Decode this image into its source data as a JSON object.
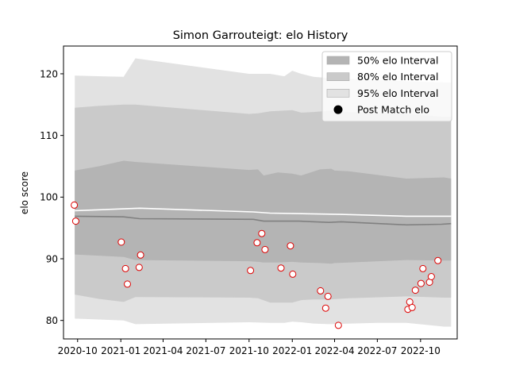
{
  "chart_data": {
    "type": "area",
    "title": "Simon Garrouteigt: elo History",
    "xlabel": "",
    "ylabel": "elo score",
    "xlim": [
      "2020-09-01",
      "2022-12-18"
    ],
    "ylim": [
      77,
      124.5
    ],
    "x_ticks": [
      "2020-10-01",
      "2021-01-01",
      "2021-04-01",
      "2021-07-01",
      "2021-10-01",
      "2022-01-01",
      "2022-04-01",
      "2022-07-01",
      "2022-10-01"
    ],
    "x_tick_labels": [
      "2020-10",
      "2021-01",
      "2021-04",
      "2021-07",
      "2021-10",
      "2022-01",
      "2022-04",
      "2022-07",
      "2022-10"
    ],
    "y_ticks": [
      80,
      90,
      100,
      110,
      120
    ],
    "y_tick_labels": [
      "80",
      "90",
      "100",
      "110",
      "120"
    ],
    "grid": false,
    "legend_position": "top-right",
    "legend": [
      {
        "label": "50% elo Interval",
        "type": "patch",
        "color": "#b4b4b4"
      },
      {
        "label": "80% elo Interval",
        "type": "patch",
        "color": "#cacaca"
      },
      {
        "label": "95% elo Interval",
        "type": "patch",
        "color": "#e2e2e2"
      },
      {
        "label": "Post Match elo",
        "type": "marker",
        "color": "#000000"
      }
    ],
    "bands": [
      {
        "name": "95% elo Interval",
        "color": "#e2e2e2",
        "x": [
          "2020-09-25",
          "2021-01-07",
          "2021-02-01",
          "2021-10-01",
          "2021-11-15",
          "2021-12-15",
          "2022-01-01",
          "2022-01-20",
          "2022-02-15",
          "2022-03-20",
          "2022-07-01",
          "2022-09-01",
          "2022-11-20",
          "2022-12-05"
        ],
        "lower": [
          80.3,
          80.0,
          79.4,
          79.7,
          79.6,
          79.6,
          79.8,
          79.7,
          79.5,
          79.4,
          79.6,
          79.6,
          79.0,
          79.0
        ],
        "upper": [
          119.7,
          119.5,
          122.5,
          120.0,
          120.0,
          119.6,
          120.5,
          120.0,
          119.5,
          119.3,
          119.0,
          118.8,
          118.6,
          118.6
        ]
      },
      {
        "name": "80% elo Interval",
        "color": "#cacaca",
        "x": [
          "2020-09-25",
          "2020-11-15",
          "2021-01-07",
          "2021-02-01",
          "2021-10-01",
          "2021-10-20",
          "2021-11-15",
          "2022-01-01",
          "2022-01-20",
          "2022-02-15",
          "2022-03-20",
          "2022-05-01",
          "2022-09-01",
          "2022-11-20",
          "2022-12-05"
        ],
        "lower": [
          84.2,
          83.5,
          83.0,
          83.8,
          83.7,
          83.6,
          82.9,
          82.9,
          83.3,
          83.4,
          83.4,
          83.6,
          83.9,
          83.7,
          83.7
        ],
        "upper": [
          114.5,
          114.8,
          115.0,
          115.0,
          113.5,
          113.6,
          113.9,
          114.1,
          113.7,
          113.8,
          114.0,
          113.8,
          113.5,
          113.0,
          113.0
        ]
      },
      {
        "name": "50% elo Interval",
        "color": "#b4b4b4",
        "x": [
          "2020-09-25",
          "2020-11-15",
          "2021-01-07",
          "2021-02-01",
          "2021-10-01",
          "2021-10-20",
          "2021-11-01",
          "2021-12-01",
          "2022-01-01",
          "2022-01-20",
          "2022-03-01",
          "2022-03-25",
          "2022-04-01",
          "2022-05-01",
          "2022-09-01",
          "2022-11-20",
          "2022-12-05"
        ],
        "lower": [
          90.7,
          90.5,
          90.3,
          89.8,
          89.6,
          89.5,
          89.4,
          89.4,
          89.5,
          89.4,
          89.3,
          89.2,
          89.3,
          89.4,
          89.8,
          89.7,
          89.7
        ],
        "upper": [
          104.3,
          105.0,
          105.9,
          105.7,
          104.4,
          104.5,
          103.5,
          104.0,
          103.8,
          103.5,
          104.5,
          104.6,
          104.3,
          104.2,
          103.0,
          103.2,
          103.0
        ]
      }
    ],
    "series": [
      {
        "name": "",
        "type": "line",
        "color": "#ffffff",
        "x": [
          "2020-09-25",
          "2021-01-07",
          "2021-02-10",
          "2021-10-10",
          "2021-11-15",
          "2022-02-01",
          "2022-04-15",
          "2022-09-01",
          "2022-12-05"
        ],
        "y": [
          97.8,
          98.1,
          98.2,
          97.6,
          97.4,
          97.3,
          97.2,
          96.9,
          96.9
        ]
      },
      {
        "name": "",
        "type": "line",
        "color": "#808080",
        "x": [
          "2020-09-25",
          "2021-01-07",
          "2021-02-10",
          "2021-10-10",
          "2021-11-01",
          "2022-01-15",
          "2022-03-20",
          "2022-04-15",
          "2022-09-01",
          "2022-11-15",
          "2022-12-05"
        ],
        "y": [
          96.9,
          96.8,
          96.5,
          96.4,
          96.1,
          96.1,
          95.9,
          96.0,
          95.5,
          95.6,
          95.7
        ]
      },
      {
        "name": "Post Match elo",
        "type": "scatter",
        "marker_face": "#ffffff",
        "marker_edge": "#dd0000",
        "x": [
          "2020-09-24",
          "2020-09-27",
          "2021-01-02",
          "2021-01-11",
          "2021-01-15",
          "2021-02-09",
          "2021-02-12",
          "2021-10-04",
          "2021-10-18",
          "2021-10-28",
          "2021-11-04",
          "2021-12-08",
          "2021-12-28",
          "2022-01-02",
          "2022-03-02",
          "2022-03-13",
          "2022-03-18",
          "2022-04-09",
          "2022-09-04",
          "2022-09-08",
          "2022-09-13",
          "2022-09-20",
          "2022-10-02",
          "2022-10-06",
          "2022-10-20",
          "2022-10-24",
          "2022-11-07"
        ],
        "y": [
          98.7,
          96.1,
          92.7,
          88.4,
          85.9,
          88.6,
          90.6,
          88.1,
          92.6,
          94.1,
          91.5,
          88.5,
          92.1,
          87.5,
          84.8,
          82.0,
          83.9,
          79.2,
          81.8,
          83.0,
          82.1,
          84.9,
          86.0,
          88.4,
          86.2,
          87.1,
          89.7
        ]
      }
    ]
  }
}
